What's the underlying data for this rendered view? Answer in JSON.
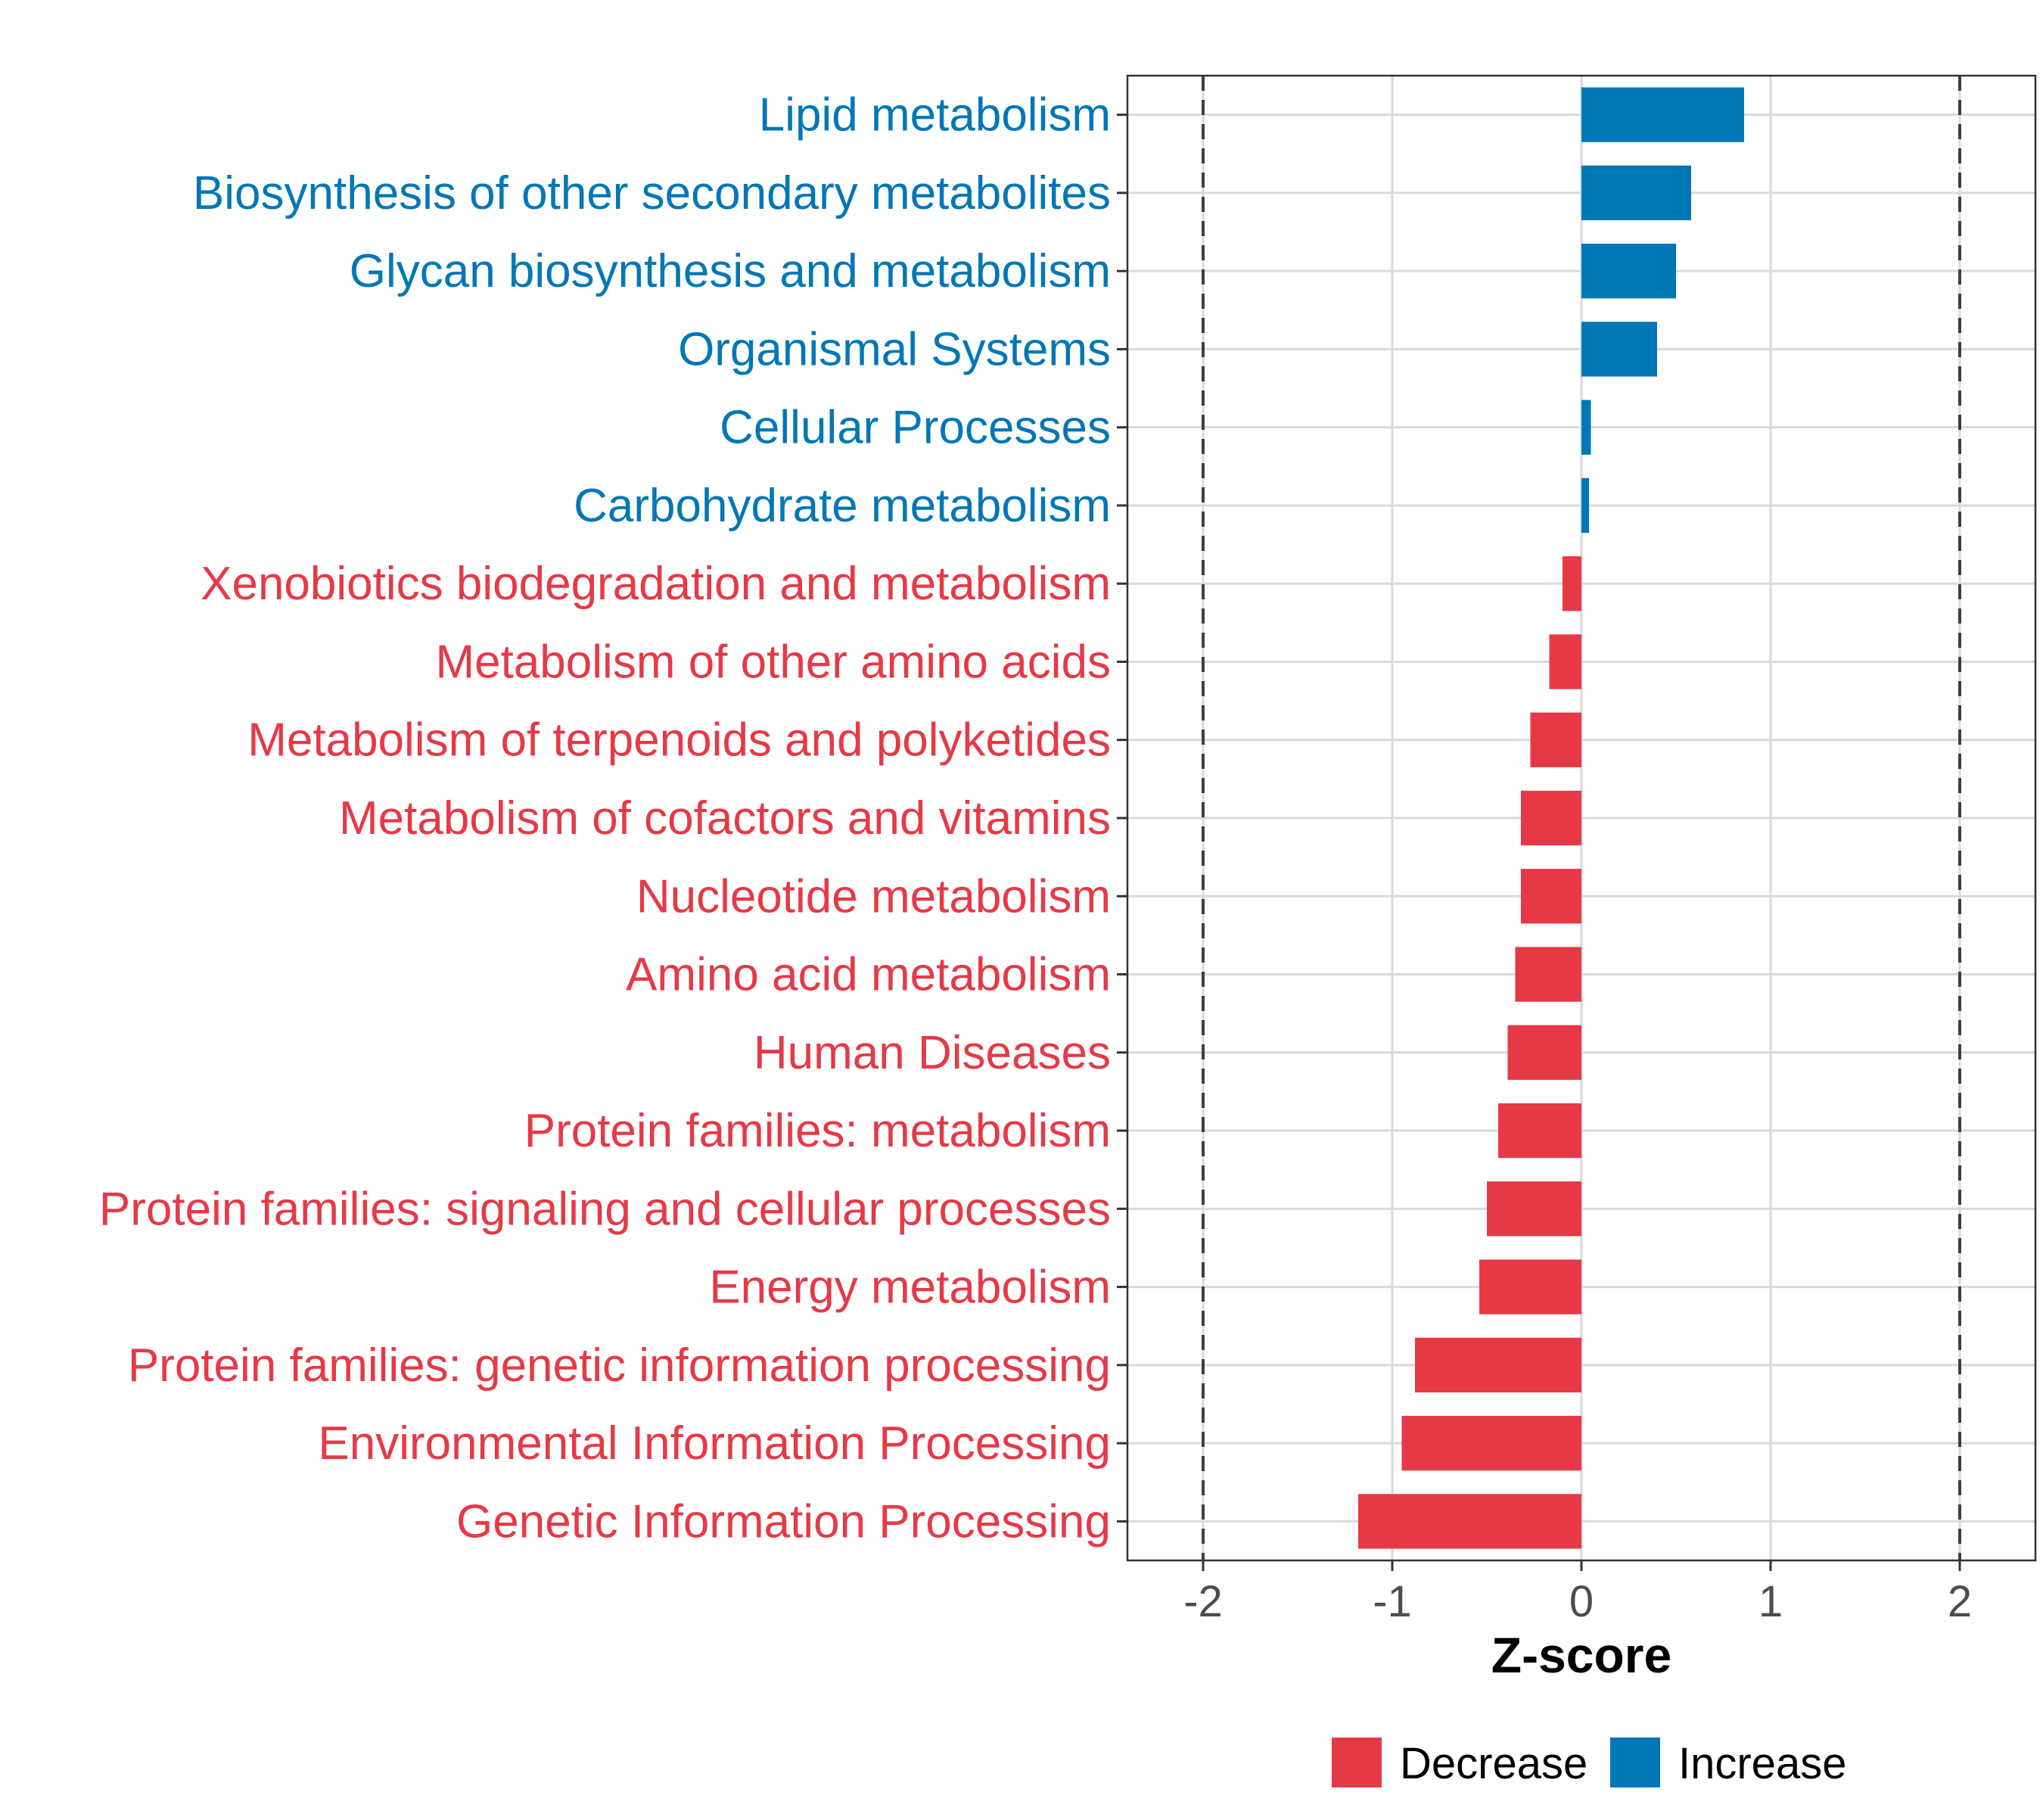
{
  "chart_data": {
    "type": "bar",
    "orientation": "horizontal",
    "xlabel": "Z-score",
    "ylabel": "",
    "xlim": [
      -2.4,
      2.4
    ],
    "x_ticks": [
      -2,
      -1,
      0,
      1,
      2
    ],
    "x_tick_labels": [
      "-2",
      "-1",
      "0",
      "1",
      "2"
    ],
    "reference_lines": [
      -2,
      2
    ],
    "grid": true,
    "legend_placement": "bottom",
    "legend": [
      {
        "name": "Decrease",
        "color": "#E63946"
      },
      {
        "name": "Increase",
        "color": "#0077B6"
      }
    ],
    "categories": [
      "Lipid metabolism",
      "Biosynthesis of other secondary metabolites",
      "Glycan biosynthesis and metabolism",
      "Organismal Systems",
      "Cellular Processes",
      "Carbohydrate metabolism",
      "Xenobiotics biodegradation and metabolism",
      "Metabolism of other amino acids",
      "Metabolism of terpenoids and polyketides",
      "Metabolism of cofactors and vitamins",
      "Nucleotide metabolism",
      "Amino acid metabolism",
      "Human Diseases",
      "Protein families: metabolism",
      "Protein families: signaling and cellular processes",
      "Energy metabolism",
      "Protein families: genetic information processing",
      "Environmental Information Processing",
      "Genetic Information Processing"
    ],
    "values": [
      0.86,
      0.58,
      0.5,
      0.4,
      0.05,
      0.04,
      -0.1,
      -0.17,
      -0.27,
      -0.32,
      -0.32,
      -0.35,
      -0.39,
      -0.44,
      -0.5,
      -0.54,
      -0.88,
      -0.95,
      -1.18
    ],
    "groups": [
      "Increase",
      "Increase",
      "Increase",
      "Increase",
      "Increase",
      "Increase",
      "Decrease",
      "Decrease",
      "Decrease",
      "Decrease",
      "Decrease",
      "Decrease",
      "Decrease",
      "Decrease",
      "Decrease",
      "Decrease",
      "Decrease",
      "Decrease",
      "Decrease"
    ]
  }
}
